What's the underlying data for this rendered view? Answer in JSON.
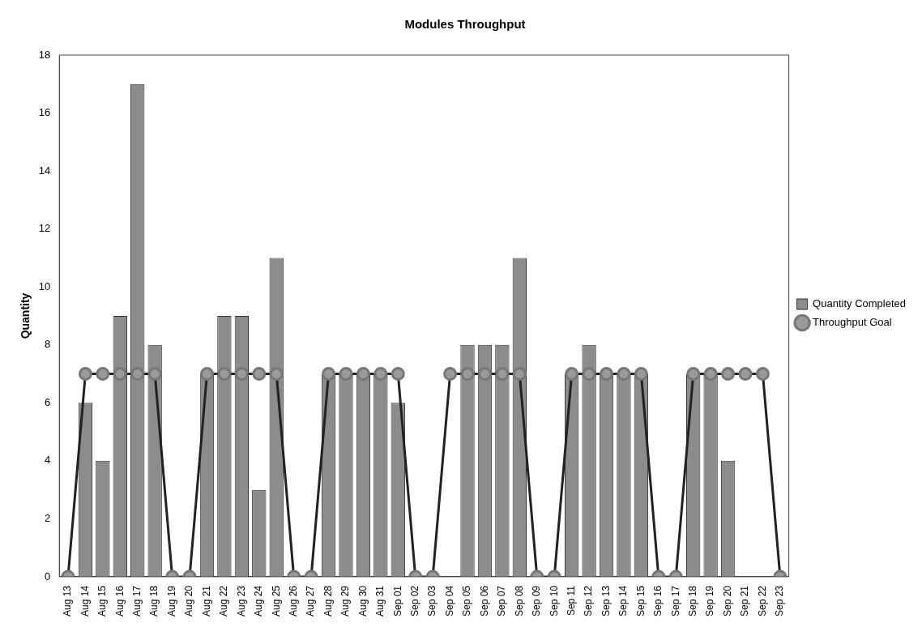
{
  "chart_data": {
    "type": "bar",
    "title": "Modules Throughput",
    "ylabel": "Quantity",
    "categories": [
      "Aug 13",
      "Aug 14",
      "Aug 15",
      "Aug 16",
      "Aug 17",
      "Aug 18",
      "Aug 19",
      "Aug 20",
      "Aug 21",
      "Aug 22",
      "Aug 23",
      "Aug 24",
      "Aug 25",
      "Aug 26",
      "Aug 27",
      "Aug 28",
      "Aug 29",
      "Aug 30",
      "Aug 31",
      "Sep 01",
      "Sep 02",
      "Sep 03",
      "Sep 04",
      "Sep 05",
      "Sep 06",
      "Sep 07",
      "Sep 08",
      "Sep 09",
      "Sep 10",
      "Sep 11",
      "Sep 12",
      "Sep 13",
      "Sep 14",
      "Sep 15",
      "Sep 16",
      "Sep 17",
      "Sep 18",
      "Sep 19",
      "Sep 20",
      "Sep 21",
      "Sep 22",
      "Sep 23"
    ],
    "series": [
      {
        "name": "Quantity Completed",
        "color": "#8c8c8c",
        "values": [
          null,
          6,
          4,
          9,
          17,
          8,
          null,
          null,
          7,
          9,
          9,
          3,
          11,
          null,
          null,
          7,
          7,
          7,
          7,
          6,
          null,
          null,
          null,
          8,
          8,
          8,
          11,
          null,
          null,
          7,
          8,
          7,
          7,
          7,
          null,
          null,
          7,
          7,
          4,
          null,
          null,
          null
        ]
      },
      {
        "name": "Throughput Goal",
        "type": "line",
        "color": "#222222",
        "values": [
          0,
          7,
          7,
          7,
          7,
          7,
          0,
          0,
          7,
          7,
          7,
          7,
          7,
          0,
          0,
          7,
          7,
          7,
          7,
          7,
          0,
          0,
          7,
          7,
          7,
          7,
          7,
          0,
          0,
          7,
          7,
          7,
          7,
          7,
          0,
          0,
          7,
          7,
          7,
          7,
          7,
          0
        ]
      }
    ],
    "ylim": [
      0,
      18
    ],
    "yticks": [
      0,
      2,
      4,
      6,
      8,
      10,
      12,
      14,
      16,
      18
    ],
    "grid": false,
    "legend": "right",
    "marker": "circle",
    "line_style": "solid"
  }
}
